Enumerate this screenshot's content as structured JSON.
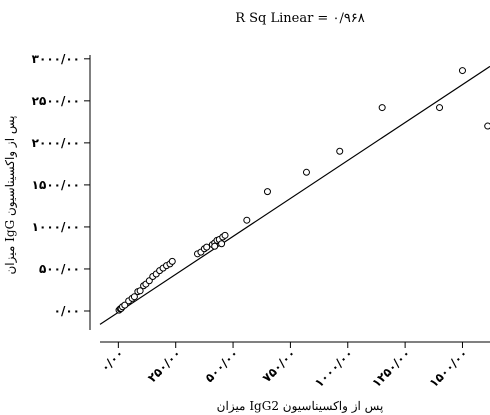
{
  "chart_data": {
    "type": "scatter",
    "title": "R Sq Linear = ۰/۹۶۸",
    "xlabel": "میزان IgG2 پس از واکسیناسیون",
    "ylabel": "میزان IgG پس از واکسیناسیون",
    "xlim": [
      -80,
      1620
    ],
    "ylim": [
      -250,
      3200
    ],
    "x_ticks": [
      0,
      250,
      500,
      750,
      1000,
      1250,
      1500
    ],
    "x_tick_labels": [
      "۰/۰۰",
      "۲۵۰/۰۰",
      "۵۰۰/۰۰",
      "۷۵۰/۰۰",
      "۱۰۰۰/۰۰",
      "۱۲۵۰/۰۰",
      "۱۵۰۰/۰۰"
    ],
    "y_ticks": [
      0,
      500,
      1000,
      1500,
      2000,
      2500,
      3000
    ],
    "y_tick_labels": [
      "۰/۰۰",
      "۵۰۰/۰۰",
      "۱۰۰۰/۰۰",
      "۱۵۰۰/۰۰",
      "۲۰۰۰/۰۰",
      "۲۵۰۰/۰۰",
      "۳۰۰۰/۰۰"
    ],
    "grid": false,
    "series": [
      {
        "points": [
          [
            3,
            10
          ],
          [
            8,
            25
          ],
          [
            12,
            30
          ],
          [
            18,
            50
          ],
          [
            28,
            70
          ],
          [
            45,
            120
          ],
          [
            60,
            150
          ],
          [
            70,
            170
          ],
          [
            85,
            230
          ],
          [
            95,
            240
          ],
          [
            110,
            300
          ],
          [
            120,
            320
          ],
          [
            135,
            360
          ],
          [
            150,
            410
          ],
          [
            165,
            440
          ],
          [
            180,
            480
          ],
          [
            195,
            510
          ],
          [
            210,
            540
          ],
          [
            225,
            560
          ],
          [
            235,
            590
          ],
          [
            345,
            680
          ],
          [
            360,
            700
          ],
          [
            375,
            740
          ],
          [
            385,
            760
          ],
          [
            410,
            790
          ],
          [
            420,
            810
          ],
          [
            430,
            840
          ],
          [
            440,
            850
          ],
          [
            455,
            880
          ],
          [
            465,
            900
          ],
          [
            420,
            770
          ],
          [
            450,
            800
          ],
          [
            560,
            1080
          ],
          [
            650,
            1420
          ],
          [
            820,
            1650
          ],
          [
            965,
            1900
          ],
          [
            1150,
            2420
          ],
          [
            1400,
            2420
          ],
          [
            1500,
            2860
          ],
          [
            1610,
            2200
          ]
        ]
      }
    ],
    "fit_line": {
      "x": [
        -80,
        1620
      ],
      "y": [
        -160,
        2910
      ]
    }
  }
}
